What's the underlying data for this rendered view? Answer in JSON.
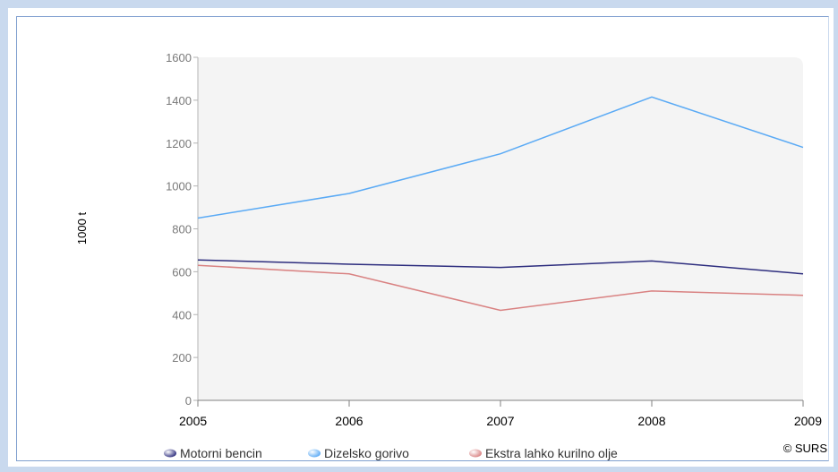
{
  "chart_data": {
    "type": "line",
    "title": "",
    "xlabel": "",
    "ylabel": "1000 t",
    "x": [
      "2005",
      "2006",
      "2007",
      "2008",
      "2009"
    ],
    "y_ticks": [
      "0",
      "200",
      "400",
      "600",
      "800",
      "1000",
      "1200",
      "1400",
      "1600"
    ],
    "ylim": [
      0,
      1600
    ],
    "grid": false,
    "legend_position": "bottom",
    "series": [
      {
        "name": "Motorni bencin",
        "color": "#2d2d7e",
        "values": [
          655,
          635,
          620,
          650,
          590
        ]
      },
      {
        "name": "Dizelsko gorivo",
        "color": "#5aaaf5",
        "values": [
          850,
          965,
          1150,
          1415,
          1180
        ]
      },
      {
        "name": "Ekstra lahko kurilno olje",
        "color": "#d98282",
        "values": [
          630,
          590,
          420,
          510,
          490
        ]
      }
    ],
    "credit": "© SURS"
  }
}
